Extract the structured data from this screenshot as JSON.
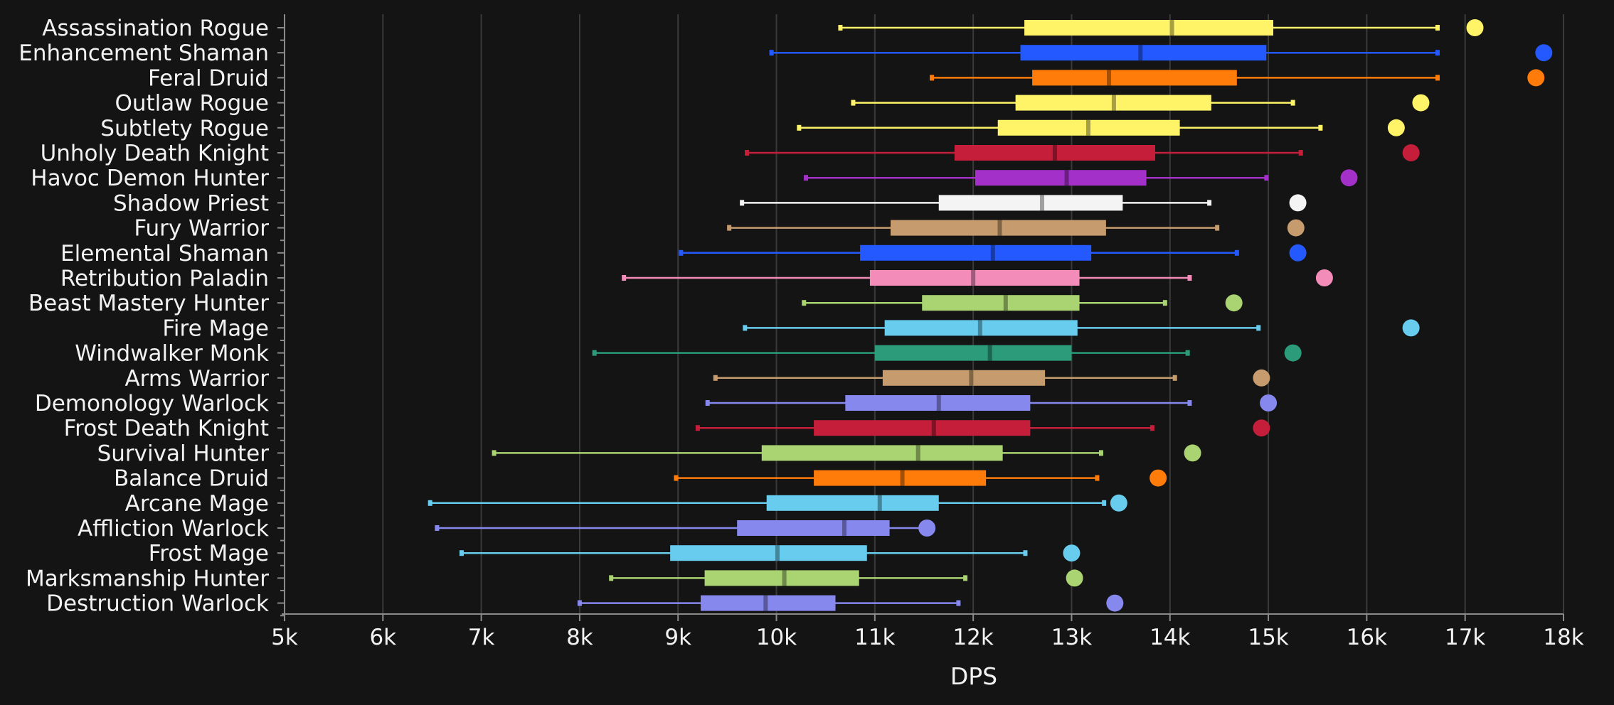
{
  "chart_data": {
    "type": "boxplot",
    "orientation": "horizontal",
    "xlabel": "DPS",
    "xlim": [
      5000,
      18000
    ],
    "x_ticks": [
      5000,
      6000,
      7000,
      8000,
      9000,
      10000,
      11000,
      12000,
      13000,
      14000,
      15000,
      16000,
      17000,
      18000
    ],
    "x_tick_labels": [
      "5k",
      "6k",
      "7k",
      "8k",
      "9k",
      "10k",
      "11k",
      "12k",
      "13k",
      "14k",
      "15k",
      "16k",
      "17k",
      "18k"
    ],
    "grid": "vertical",
    "legend": "none",
    "series": [
      {
        "name": "Assassination Rogue",
        "color": "#fff468",
        "min": 10650,
        "q1": 12520,
        "median": 14020,
        "q3": 15050,
        "max": 16720,
        "max_point": 17100
      },
      {
        "name": "Enhancement Shaman",
        "color": "#2459ff",
        "min": 9950,
        "q1": 12480,
        "median": 13700,
        "q3": 14980,
        "max": 16720,
        "max_point": 17800
      },
      {
        "name": "Feral Druid",
        "color": "#ff7c0a",
        "min": 11580,
        "q1": 12600,
        "median": 13380,
        "q3": 14680,
        "max": 16720,
        "max_point": 17720
      },
      {
        "name": "Outlaw Rogue",
        "color": "#fff468",
        "min": 10780,
        "q1": 12430,
        "median": 13430,
        "q3": 14420,
        "max": 15250,
        "max_point": 16550
      },
      {
        "name": "Subtlety Rogue",
        "color": "#fff468",
        "min": 10230,
        "q1": 12250,
        "median": 13170,
        "q3": 14100,
        "max": 15530,
        "max_point": 16300
      },
      {
        "name": "Unholy Death Knight",
        "color": "#c41e3a",
        "min": 9700,
        "q1": 11810,
        "median": 12830,
        "q3": 13850,
        "max": 15330,
        "max_point": 16450
      },
      {
        "name": "Havoc Demon Hunter",
        "color": "#a330c9",
        "min": 10300,
        "q1": 12020,
        "median": 12950,
        "q3": 13760,
        "max": 14980,
        "max_point": 15820
      },
      {
        "name": "Shadow Priest",
        "color": "#f4f4f4",
        "min": 9650,
        "q1": 11650,
        "median": 12700,
        "q3": 13520,
        "max": 14400,
        "max_point": 15300
      },
      {
        "name": "Fury Warrior",
        "color": "#c69b6d",
        "min": 9520,
        "q1": 11160,
        "median": 12270,
        "q3": 13350,
        "max": 14480,
        "max_point": 15280
      },
      {
        "name": "Elemental Shaman",
        "color": "#2459ff",
        "min": 9030,
        "q1": 10850,
        "median": 12200,
        "q3": 13200,
        "max": 14680,
        "max_point": 15300
      },
      {
        "name": "Retribution Paladin",
        "color": "#f48cba",
        "min": 8450,
        "q1": 10950,
        "median": 12000,
        "q3": 13080,
        "max": 14200,
        "max_point": 15570
      },
      {
        "name": "Beast Mastery Hunter",
        "color": "#aad372",
        "min": 10280,
        "q1": 11480,
        "median": 12330,
        "q3": 13080,
        "max": 13950,
        "max_point": 14650
      },
      {
        "name": "Fire Mage",
        "color": "#68ccef",
        "min": 9680,
        "q1": 11100,
        "median": 12070,
        "q3": 13060,
        "max": 14900,
        "max_point": 16450
      },
      {
        "name": "Windwalker Monk",
        "color": "#2b9b79",
        "min": 8150,
        "q1": 11000,
        "median": 12170,
        "q3": 13000,
        "max": 14180,
        "max_point": 15250
      },
      {
        "name": "Arms Warrior",
        "color": "#c69b6d",
        "min": 9380,
        "q1": 11080,
        "median": 11980,
        "q3": 12730,
        "max": 14050,
        "max_point": 14930
      },
      {
        "name": "Demonology Warlock",
        "color": "#8788ee",
        "min": 9300,
        "q1": 10700,
        "median": 11650,
        "q3": 12580,
        "max": 14200,
        "max_point": 15000
      },
      {
        "name": "Frost Death Knight",
        "color": "#c41e3a",
        "min": 9200,
        "q1": 10380,
        "median": 11600,
        "q3": 12580,
        "max": 13820,
        "max_point": 14930
      },
      {
        "name": "Survival Hunter",
        "color": "#aad372",
        "min": 7130,
        "q1": 9850,
        "median": 11440,
        "q3": 12300,
        "max": 13300,
        "max_point": 14230
      },
      {
        "name": "Balance Druid",
        "color": "#ff7c0a",
        "min": 8980,
        "q1": 10380,
        "median": 11280,
        "q3": 12130,
        "max": 13260,
        "max_point": 13880
      },
      {
        "name": "Arcane Mage",
        "color": "#68ccef",
        "min": 6480,
        "q1": 9900,
        "median": 11050,
        "q3": 11650,
        "max": 13330,
        "max_point": 13480
      },
      {
        "name": "Affliction Warlock",
        "color": "#8788ee",
        "min": 6550,
        "q1": 9600,
        "median": 10690,
        "q3": 11150,
        "max": 11520,
        "max_point": 11530
      },
      {
        "name": "Frost Mage",
        "color": "#68ccef",
        "min": 6800,
        "q1": 8920,
        "median": 10010,
        "q3": 10920,
        "max": 12530,
        "max_point": 13000
      },
      {
        "name": "Marksmanship Hunter",
        "color": "#aad372",
        "min": 8320,
        "q1": 9270,
        "median": 10080,
        "q3": 10840,
        "max": 11920,
        "max_point": 13030
      },
      {
        "name": "Destruction Warlock",
        "color": "#8788ee",
        "min": 8000,
        "q1": 9230,
        "median": 9890,
        "q3": 10600,
        "max": 11850,
        "max_point": 13440
      }
    ]
  }
}
